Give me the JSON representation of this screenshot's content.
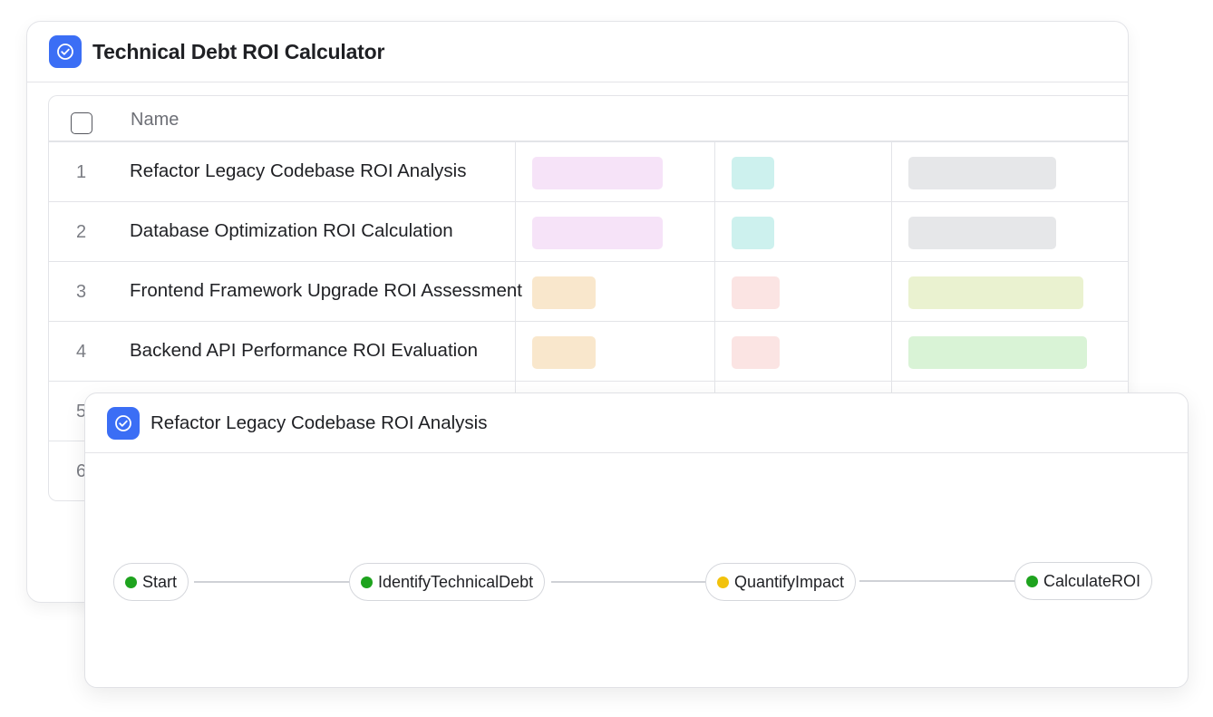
{
  "main": {
    "title": "Technical Debt ROI Calculator",
    "icon": "check-circle-icon",
    "accent": "#3b6ef5"
  },
  "table": {
    "header_name": "Name",
    "rows": [
      {
        "num": "1",
        "name": "Refactor Legacy Codebase ROI Analysis",
        "tags": [
          "#f6e3f8",
          "#cdf1ee",
          "#e6e7e9"
        ]
      },
      {
        "num": "2",
        "name": "Database Optimization ROI Calculation",
        "tags": [
          "#f6e3f8",
          "#cdf1ee",
          "#e6e7e9"
        ]
      },
      {
        "num": "3",
        "name": "Frontend Framework Upgrade ROI Assessment",
        "tags": [
          "#f9e7cc",
          "#fbe4e3",
          "#eaf2d0"
        ]
      },
      {
        "num": "4",
        "name": "Backend API Performance ROI Evaluation",
        "tags": [
          "#f9e7cc",
          "#fbe4e3",
          "#d9f3d6"
        ]
      },
      {
        "num": "5",
        "name": "",
        "tags": []
      },
      {
        "num": "6",
        "name": "",
        "tags": []
      }
    ]
  },
  "detail": {
    "title": "Refactor Legacy Codebase ROI Analysis",
    "icon": "check-circle-icon",
    "nodes": [
      {
        "label": "Start",
        "status_color": "#1ea31e"
      },
      {
        "label": "IdentifyTechnicalDebt",
        "status_color": "#1ea31e"
      },
      {
        "label": "QuantifyImpact",
        "status_color": "#f2c20c"
      },
      {
        "label": "CalculateROI",
        "status_color": "#1ea31e"
      }
    ]
  }
}
